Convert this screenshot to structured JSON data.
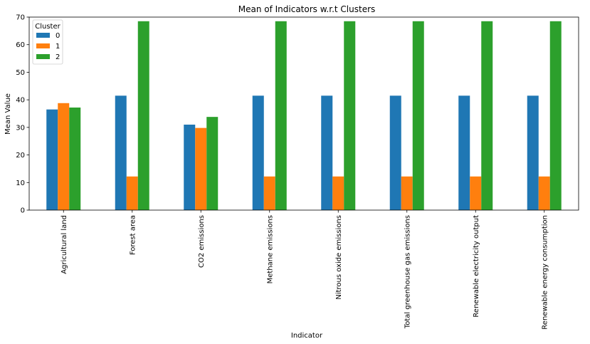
{
  "chart_data": {
    "type": "bar",
    "title": "Mean of Indicators w.r.t Clusters",
    "xlabel": "Indicator",
    "ylabel": "Mean Value",
    "ylim": [
      0,
      70
    ],
    "yticks": [
      0,
      10,
      20,
      30,
      40,
      50,
      60,
      70
    ],
    "grid": false,
    "legend_title": "Cluster",
    "legend_position": "top-left",
    "categories": [
      "Agricultural land",
      "Forest area",
      "CO2 emissions",
      "Methane emissions",
      "Nitrous oxide emissions",
      "Total greenhouse gas emissions",
      "Renewable electricity output",
      "Renewable energy consumption"
    ],
    "series": [
      {
        "name": "0",
        "color": "#1f77b4",
        "values": [
          36.5,
          41.5,
          31.0,
          41.5,
          41.5,
          41.5,
          41.5,
          41.5
        ]
      },
      {
        "name": "1",
        "color": "#ff7f0e",
        "values": [
          38.8,
          12.2,
          29.8,
          12.2,
          12.2,
          12.2,
          12.2,
          12.2
        ]
      },
      {
        "name": "2",
        "color": "#2ca02c",
        "values": [
          37.2,
          68.5,
          33.8,
          68.5,
          68.5,
          68.5,
          68.5,
          68.5
        ]
      }
    ]
  }
}
